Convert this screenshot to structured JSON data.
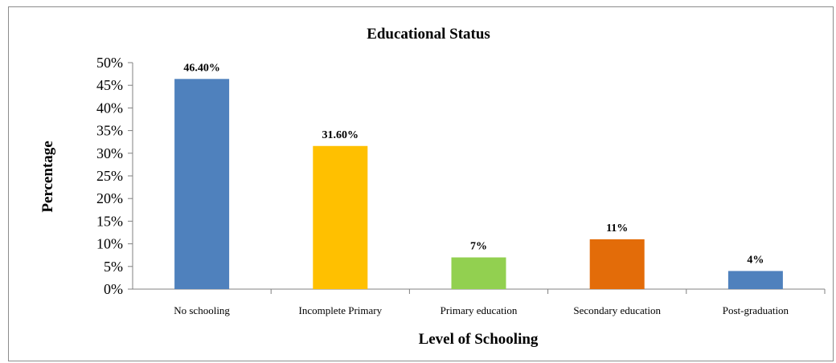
{
  "chart_data": {
    "type": "bar",
    "title": "Educational Status",
    "xlabel": "Level of Schooling",
    "ylabel": "Percentage",
    "categories": [
      "No schooling",
      "Incomplete Primary",
      "Primary education",
      "Secondary education",
      "Post-graduation"
    ],
    "values": [
      46.4,
      31.6,
      7,
      11,
      4
    ],
    "data_labels": [
      "46.40%",
      "31.60%",
      "7%",
      "11%",
      "4%"
    ],
    "colors": [
      "#4f81bd",
      "#ffc000",
      "#92d050",
      "#e36c09",
      "#4f81bd"
    ],
    "ylim": [
      0,
      50
    ],
    "yticks": [
      0,
      5,
      10,
      15,
      20,
      25,
      30,
      35,
      40,
      45,
      50
    ],
    "ytick_labels": [
      "0%",
      "5%",
      "10%",
      "15%",
      "20%",
      "25%",
      "30%",
      "35%",
      "40%",
      "45%",
      "50%"
    ],
    "grid": false,
    "legend": "none"
  }
}
